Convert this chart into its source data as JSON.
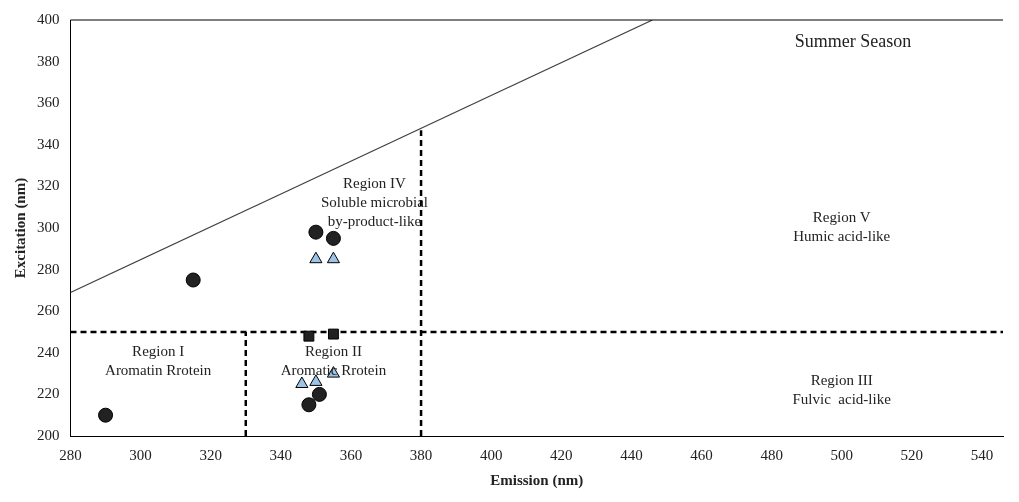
{
  "chart_data": {
    "type": "scatter",
    "title": "Summer Season",
    "xlabel": "Emission (nm)",
    "ylabel": "Excitation (nm)",
    "xlim": [
      280,
      546
    ],
    "ylim": [
      200,
      400
    ],
    "xticks": [
      280,
      300,
      320,
      340,
      360,
      380,
      400,
      420,
      440,
      460,
      480,
      500,
      520,
      540
    ],
    "yticks": [
      200,
      220,
      240,
      260,
      280,
      300,
      320,
      340,
      360,
      380,
      400
    ],
    "grid": false,
    "legend": false,
    "series": [
      {
        "type": "scatter",
        "marker": "circle",
        "color": "#222222",
        "x": [
          290,
          315,
          350,
          355,
          348,
          351
        ],
        "values": [
          210,
          275,
          298,
          295,
          215,
          220
        ]
      },
      {
        "type": "scatter",
        "marker": "square",
        "color": "#222222",
        "x": [
          348,
          355
        ],
        "values": [
          248,
          249
        ]
      },
      {
        "type": "scatter",
        "marker": "triangle",
        "color": "#9dc3e6",
        "x": [
          350,
          355,
          346,
          350,
          355
        ],
        "values": [
          285,
          285,
          225,
          226,
          230
        ]
      },
      {
        "type": "line",
        "line_style": "solid",
        "color": "#404040",
        "x": [
          280,
          446
        ],
        "values": [
          269,
          400
        ]
      },
      {
        "type": "line",
        "line_style": "dashed",
        "color": "#000000",
        "x": [
          280,
          546
        ],
        "values": [
          250,
          250
        ]
      },
      {
        "type": "line",
        "line_style": "dashed",
        "color": "#000000",
        "x": [
          330,
          330
        ],
        "values": [
          200,
          250
        ]
      },
      {
        "type": "line",
        "line_style": "dashed",
        "color": "#000000",
        "x": [
          380,
          380
        ],
        "values": [
          200,
          347
        ]
      }
    ],
    "annotations": [
      "Region I\nAromatin Rrotein",
      "Region II\nAromatic Rrotein",
      "Region III\nFulvic  acid-like",
      "Region IV\nSoluble microbial\nby-product-like",
      "Region V\nHumic acid-like"
    ]
  }
}
